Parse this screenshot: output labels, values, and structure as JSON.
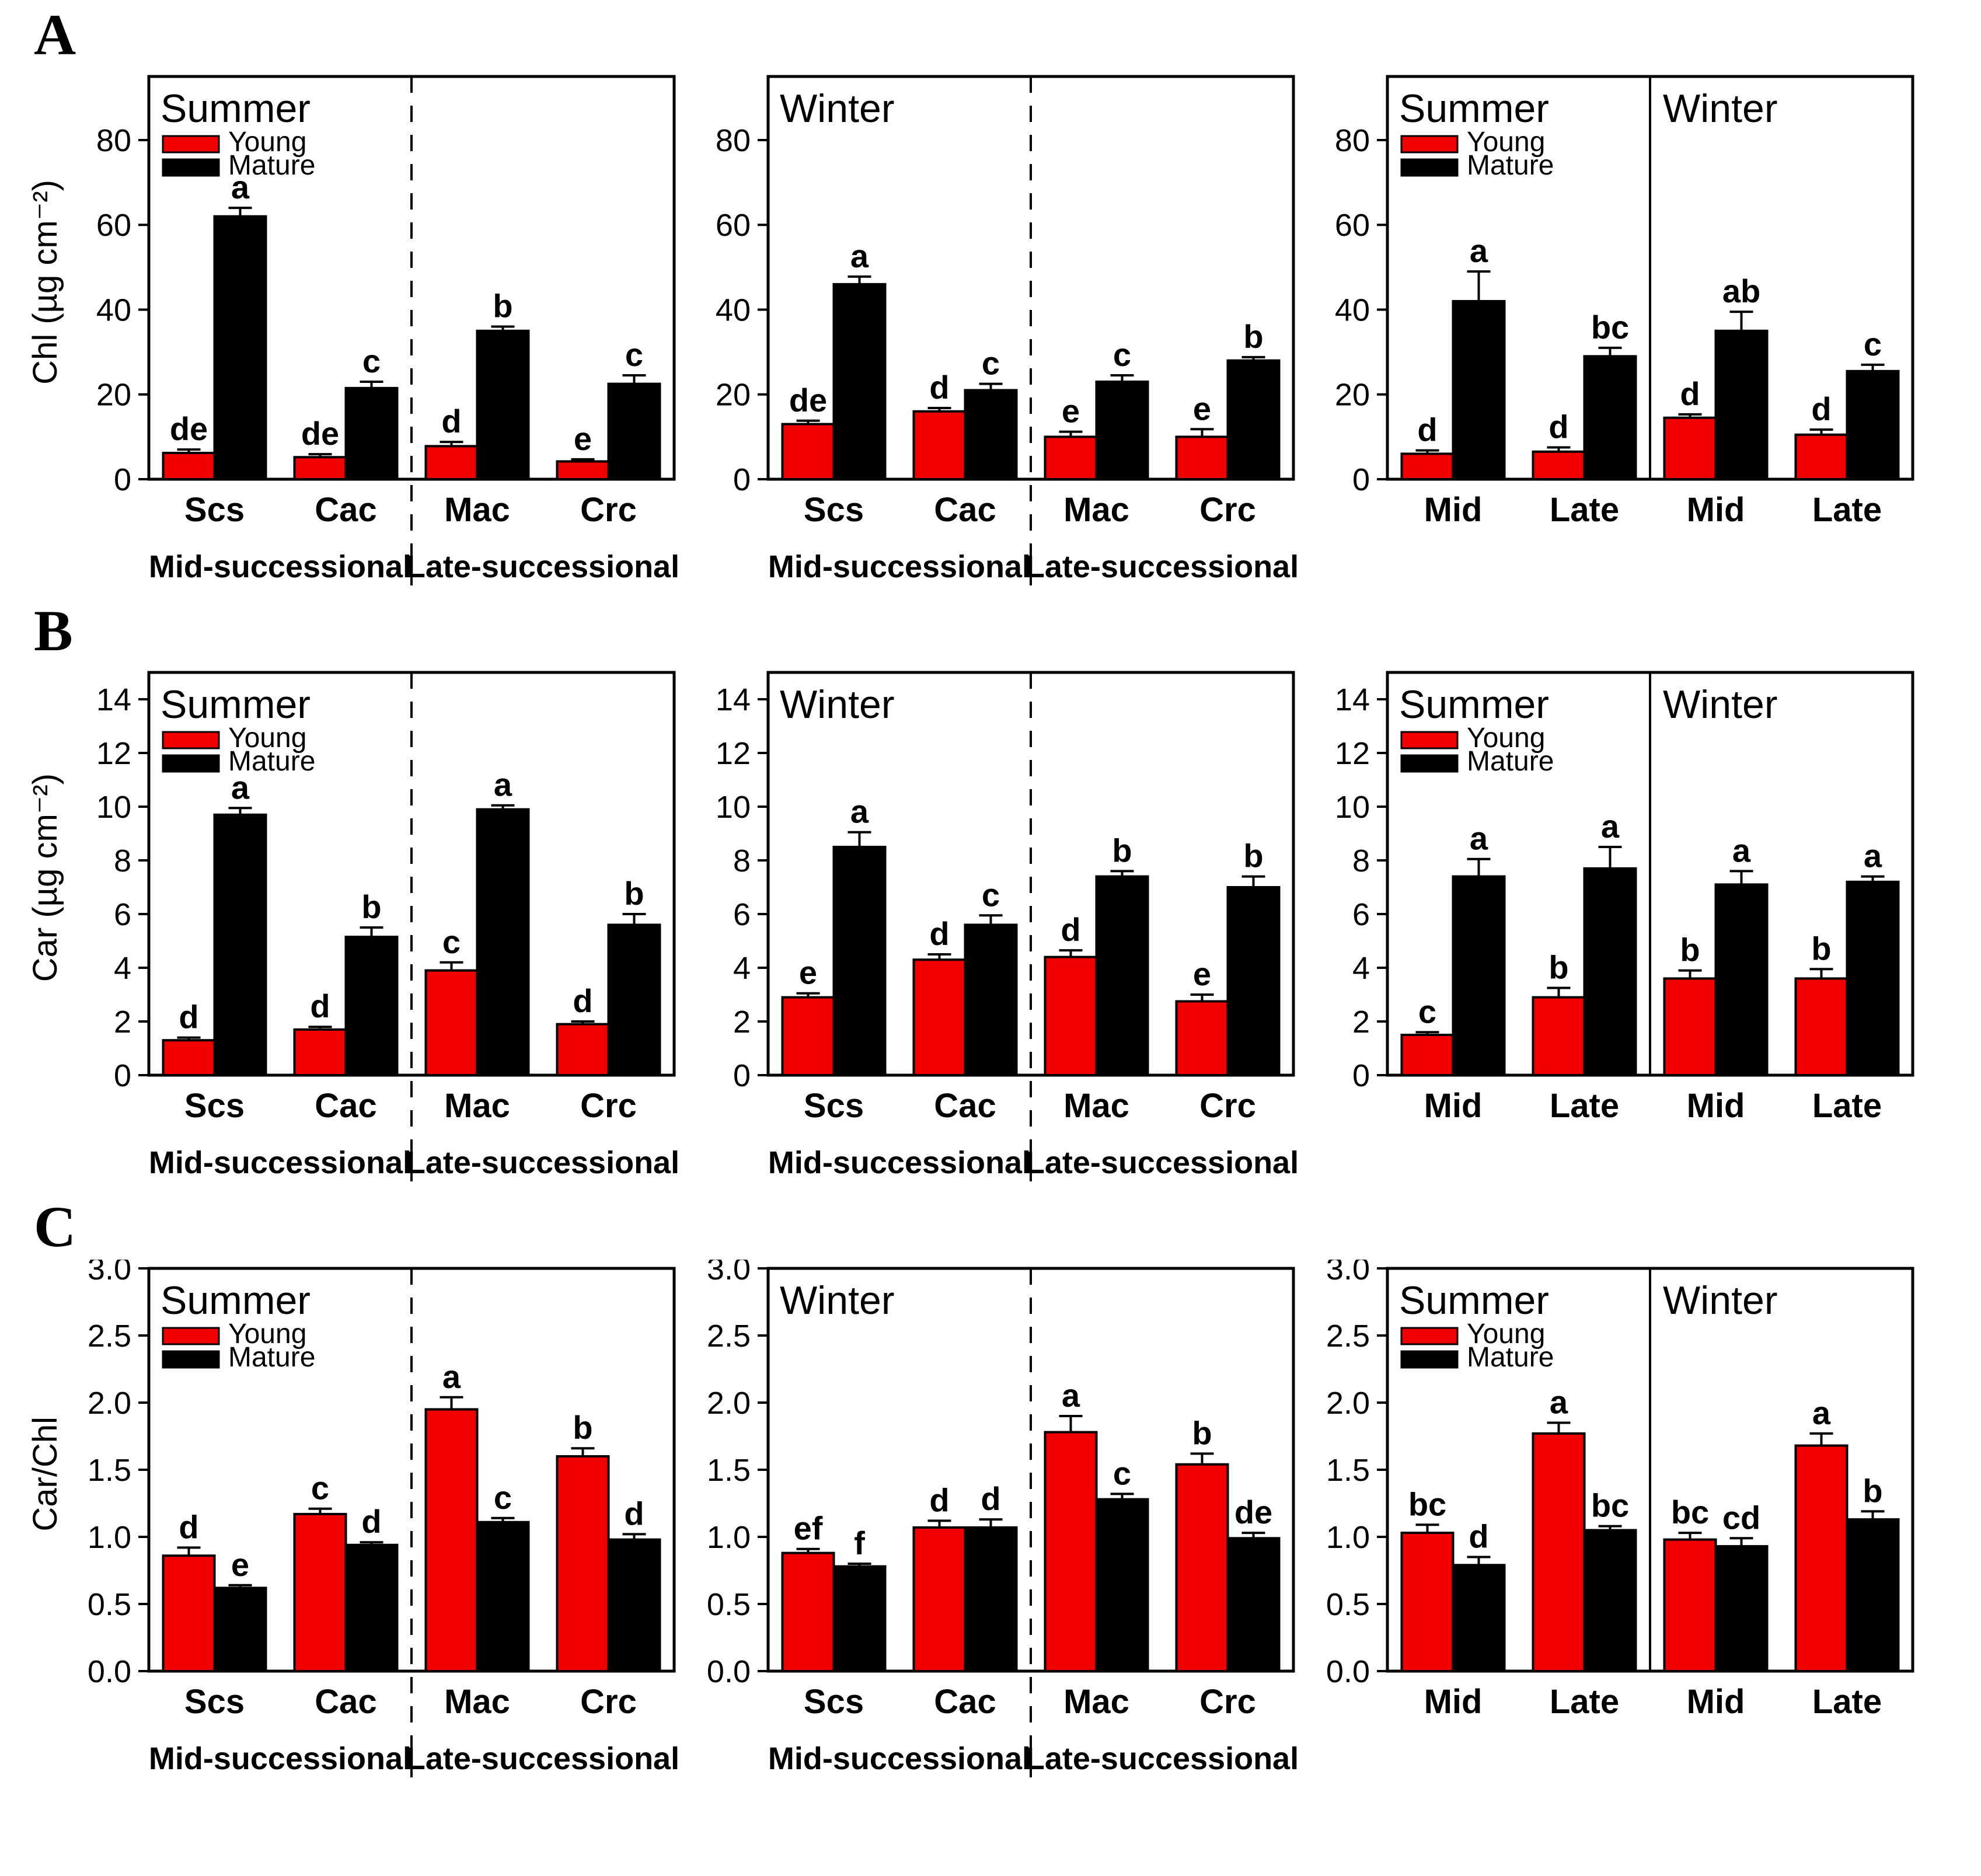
{
  "chart_data": {
    "type": "bar",
    "legend_position": "top-left-inside",
    "grid": false,
    "colors": {
      "young": "#f20000",
      "mature": "#000000",
      "axis": "#000000",
      "background": "#ffffff"
    },
    "legend": {
      "young_label": "Young",
      "mature_label": "Mature"
    },
    "rows": [
      {
        "letter": "A",
        "ylabel": "Chl (µg cm⁻²)",
        "ymax": 95,
        "yticks": [
          0,
          20,
          40,
          60,
          80
        ],
        "ytick_labels": [
          "0",
          "20",
          "40",
          "60",
          "80"
        ],
        "panels": [
          {
            "title_left": "Summer",
            "title_right": null,
            "show_legend": true,
            "divider": "dashed",
            "categories": [
              "Scs",
              "Cac",
              "Mac",
              "Crc"
            ],
            "group_labels": [
              "Mid-successional",
              "Late-successional"
            ],
            "series": [
              {
                "name": "Young",
                "color_key": "young",
                "values": [
                  6.2,
                  5.2,
                  7.8,
                  4.2
                ],
                "errors": [
                  0.8,
                  0.7,
                  1.0,
                  0.5
                ],
                "letters": [
                  "de",
                  "de",
                  "d",
                  "e"
                ]
              },
              {
                "name": "Mature",
                "color_key": "mature",
                "values": [
                  62,
                  21.5,
                  35,
                  22.5
                ],
                "errors": [
                  2.0,
                  1.5,
                  1.0,
                  2.0
                ],
                "letters": [
                  "a",
                  "c",
                  "b",
                  "c"
                ]
              }
            ]
          },
          {
            "title_left": "Winter",
            "title_right": null,
            "show_legend": false,
            "divider": "dashed",
            "categories": [
              "Scs",
              "Cac",
              "Mac",
              "Crc"
            ],
            "group_labels": [
              "Mid-successional",
              "Late-successional"
            ],
            "series": [
              {
                "name": "Young",
                "color_key": "young",
                "values": [
                  13,
                  16,
                  10,
                  10
                ],
                "errors": [
                  0.8,
                  0.8,
                  1.2,
                  1.8
                ],
                "letters": [
                  "de",
                  "d",
                  "e",
                  "e"
                ]
              },
              {
                "name": "Mature",
                "color_key": "mature",
                "values": [
                  46,
                  21,
                  23,
                  28
                ],
                "errors": [
                  1.8,
                  1.5,
                  1.5,
                  0.8
                ],
                "letters": [
                  "a",
                  "c",
                  "c",
                  "b"
                ]
              }
            ]
          },
          {
            "title_left": "Summer",
            "title_right": "Winter",
            "show_legend": true,
            "divider": "solid",
            "categories": [
              "Mid",
              "Late",
              "Mid",
              "Late"
            ],
            "group_labels": null,
            "series": [
              {
                "name": "Young",
                "color_key": "young",
                "values": [
                  6,
                  6.5,
                  14.5,
                  10.5
                ],
                "errors": [
                  0.8,
                  1.0,
                  0.8,
                  1.2
                ],
                "letters": [
                  "d",
                  "d",
                  "d",
                  "d"
                ]
              },
              {
                "name": "Mature",
                "color_key": "mature",
                "values": [
                  42,
                  29,
                  35,
                  25.5
                ],
                "errors": [
                  7.0,
                  2.0,
                  4.5,
                  1.5
                ],
                "letters": [
                  "a",
                  "bc",
                  "ab",
                  "c"
                ]
              }
            ]
          }
        ]
      },
      {
        "letter": "B",
        "ylabel": "Car (µg cm⁻²)",
        "ymax": 15,
        "yticks": [
          0,
          2,
          4,
          6,
          8,
          10,
          12,
          14
        ],
        "ytick_labels": [
          "0",
          "2",
          "4",
          "6",
          "8",
          "10",
          "12",
          "14"
        ],
        "panels": [
          {
            "title_left": "Summer",
            "title_right": null,
            "show_legend": true,
            "divider": "dashed",
            "categories": [
              "Scs",
              "Cac",
              "Mac",
              "Crc"
            ],
            "group_labels": [
              "Mid-successional",
              "Late-successional"
            ],
            "series": [
              {
                "name": "Young",
                "color_key": "young",
                "values": [
                  1.3,
                  1.7,
                  3.9,
                  1.9
                ],
                "errors": [
                  0.1,
                  0.1,
                  0.3,
                  0.1
                ],
                "letters": [
                  "d",
                  "d",
                  "c",
                  "d"
                ]
              },
              {
                "name": "Mature",
                "color_key": "mature",
                "values": [
                  9.7,
                  5.15,
                  9.9,
                  5.6
                ],
                "errors": [
                  0.25,
                  0.35,
                  0.15,
                  0.4
                ],
                "letters": [
                  "a",
                  "b",
                  "a",
                  "b"
                ]
              }
            ]
          },
          {
            "title_left": "Winter",
            "title_right": null,
            "show_legend": false,
            "divider": "dashed",
            "categories": [
              "Scs",
              "Cac",
              "Mac",
              "Crc"
            ],
            "group_labels": [
              "Mid-successional",
              "Late-successional"
            ],
            "series": [
              {
                "name": "Young",
                "color_key": "young",
                "values": [
                  2.9,
                  4.3,
                  4.4,
                  2.75
                ],
                "errors": [
                  0.15,
                  0.2,
                  0.25,
                  0.25
                ],
                "letters": [
                  "e",
                  "d",
                  "d",
                  "e"
                ]
              },
              {
                "name": "Mature",
                "color_key": "mature",
                "values": [
                  8.5,
                  5.6,
                  7.4,
                  7.0
                ],
                "errors": [
                  0.55,
                  0.35,
                  0.2,
                  0.4
                ],
                "letters": [
                  "a",
                  "c",
                  "b",
                  "b"
                ]
              }
            ]
          },
          {
            "title_left": "Summer",
            "title_right": "Winter",
            "show_legend": true,
            "divider": "solid",
            "categories": [
              "Mid",
              "Late",
              "Mid",
              "Late"
            ],
            "group_labels": null,
            "series": [
              {
                "name": "Young",
                "color_key": "young",
                "values": [
                  1.5,
                  2.9,
                  3.6,
                  3.6
                ],
                "errors": [
                  0.1,
                  0.35,
                  0.3,
                  0.35
                ],
                "letters": [
                  "c",
                  "b",
                  "b",
                  "b"
                ]
              },
              {
                "name": "Mature",
                "color_key": "mature",
                "values": [
                  7.4,
                  7.7,
                  7.1,
                  7.2
                ],
                "errors": [
                  0.65,
                  0.8,
                  0.5,
                  0.2
                ],
                "letters": [
                  "a",
                  "a",
                  "a",
                  "a"
                ]
              }
            ]
          }
        ]
      },
      {
        "letter": "C",
        "ylabel": "Car/Chl",
        "ymax": 3.0,
        "yticks": [
          0,
          0.5,
          1.0,
          1.5,
          2.0,
          2.5,
          3.0
        ],
        "ytick_labels": [
          "0.0",
          "0.5",
          "1.0",
          "1.5",
          "2.0",
          "2.5",
          "3.0"
        ],
        "panels": [
          {
            "title_left": "Summer",
            "title_right": null,
            "show_legend": true,
            "divider": "dashed",
            "categories": [
              "Scs",
              "Cac",
              "Mac",
              "Crc"
            ],
            "group_labels": [
              "Mid-successional",
              "Late-successional"
            ],
            "series": [
              {
                "name": "Young",
                "color_key": "young",
                "values": [
                  0.86,
                  1.17,
                  1.95,
                  1.6
                ],
                "errors": [
                  0.06,
                  0.04,
                  0.09,
                  0.06
                ],
                "letters": [
                  "d",
                  "c",
                  "a",
                  "b"
                ]
              },
              {
                "name": "Mature",
                "color_key": "mature",
                "values": [
                  0.62,
                  0.94,
                  1.11,
                  0.98
                ],
                "errors": [
                  0.02,
                  0.02,
                  0.03,
                  0.04
                ],
                "letters": [
                  "e",
                  "d",
                  "c",
                  "d"
                ]
              }
            ]
          },
          {
            "title_left": "Winter",
            "title_right": null,
            "show_legend": false,
            "divider": "dashed",
            "categories": [
              "Scs",
              "Cac",
              "Mac",
              "Crc"
            ],
            "group_labels": [
              "Mid-successional",
              "Late-successional"
            ],
            "series": [
              {
                "name": "Young",
                "color_key": "young",
                "values": [
                  0.88,
                  1.07,
                  1.78,
                  1.54
                ],
                "errors": [
                  0.03,
                  0.05,
                  0.12,
                  0.08
                ],
                "letters": [
                  "ef",
                  "d",
                  "a",
                  "b"
                ]
              },
              {
                "name": "Mature",
                "color_key": "mature",
                "values": [
                  0.78,
                  1.07,
                  1.28,
                  0.99
                ],
                "errors": [
                  0.02,
                  0.06,
                  0.04,
                  0.04
                ],
                "letters": [
                  "f",
                  "d",
                  "c",
                  "de"
                ]
              }
            ]
          },
          {
            "title_left": "Summer",
            "title_right": "Winter",
            "show_legend": true,
            "divider": "solid",
            "categories": [
              "Mid",
              "Late",
              "Mid",
              "Late"
            ],
            "group_labels": null,
            "series": [
              {
                "name": "Young",
                "color_key": "young",
                "values": [
                  1.03,
                  1.77,
                  0.98,
                  1.68
                ],
                "errors": [
                  0.06,
                  0.08,
                  0.05,
                  0.09
                ],
                "letters": [
                  "bc",
                  "a",
                  "bc",
                  "a"
                ]
              },
              {
                "name": "Mature",
                "color_key": "mature",
                "values": [
                  0.79,
                  1.05,
                  0.93,
                  1.13
                ],
                "errors": [
                  0.06,
                  0.03,
                  0.06,
                  0.06
                ],
                "letters": [
                  "d",
                  "bc",
                  "cd",
                  "b"
                ]
              }
            ]
          }
        ]
      }
    ]
  }
}
